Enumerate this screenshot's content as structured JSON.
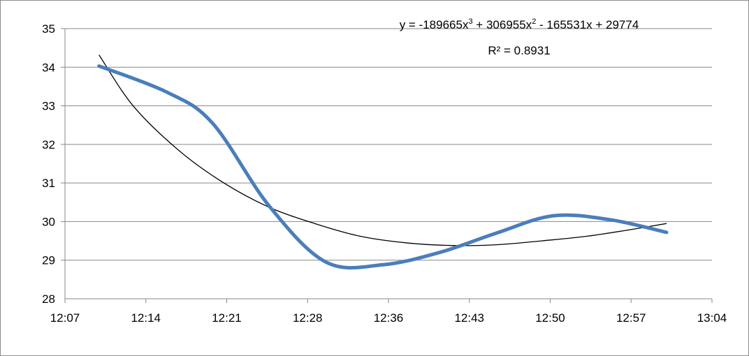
{
  "chart_data": {
    "type": "line",
    "title": "",
    "xlabel": "",
    "ylabel": "",
    "xlim": [
      "12:07",
      "13:04"
    ],
    "ylim": [
      28,
      35
    ],
    "x_ticks": [
      "12:07",
      "12:14",
      "12:21",
      "12:28",
      "12:36",
      "12:43",
      "12:50",
      "12:57",
      "13:04"
    ],
    "y_ticks": [
      28,
      29,
      30,
      31,
      32,
      33,
      34,
      35
    ],
    "grid": "horizontal",
    "legend": "none",
    "series": [
      {
        "color": "#4a7ebb",
        "smooth": true,
        "x": [
          "12:10",
          "12:16",
          "12:20",
          "12:25",
          "12:30",
          "12:35",
          "12:40",
          "12:45",
          "12:50",
          "12:55",
          "13:00"
        ],
        "y": [
          34.03,
          33.35,
          32.55,
          30.4,
          28.95,
          28.88,
          29.2,
          29.7,
          30.15,
          30.05,
          29.72
        ]
      }
    ],
    "trendline": {
      "type": "polynomial",
      "order": 3,
      "color": "#000000",
      "equation_prefix": "y = -189665x",
      "equation_exp1": "3",
      "equation_mid": " + 306955x",
      "equation_exp2": "2",
      "equation_suffix": " - 165531x + 29774",
      "r_squared_label": "R² = 0.8931",
      "x": [
        "12:10",
        "12:13",
        "12:17",
        "12:21",
        "12:25",
        "12:29",
        "12:33",
        "12:37",
        "12:41",
        "12:45",
        "12:49",
        "12:53",
        "12:57",
        "13:00"
      ],
      "y": [
        34.32,
        33.0,
        31.85,
        31.0,
        30.37,
        29.95,
        29.62,
        29.45,
        29.38,
        29.4,
        29.5,
        29.62,
        29.8,
        29.95
      ]
    }
  }
}
